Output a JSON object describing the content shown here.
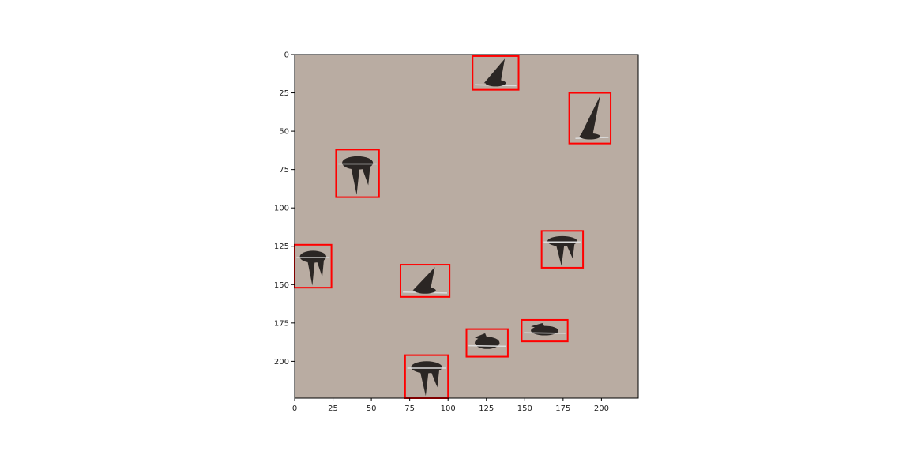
{
  "image": {
    "background_color": "#b9aca2",
    "subject": "birds in flight",
    "x_range": [
      0,
      224
    ],
    "y_range": [
      0,
      224
    ]
  },
  "axes": {
    "x_ticks": [
      0,
      25,
      50,
      75,
      100,
      125,
      150,
      175,
      200
    ],
    "y_ticks": [
      0,
      25,
      50,
      75,
      100,
      125,
      150,
      175,
      200
    ]
  },
  "box_color": "#ff0000",
  "detections": [
    {
      "x0": 116,
      "y0": 1,
      "x1": 146,
      "y1": 23,
      "pose": "glide"
    },
    {
      "x0": 179,
      "y0": 25,
      "x1": 206,
      "y1": 58,
      "pose": "up"
    },
    {
      "x0": 27,
      "y0": 62,
      "x1": 55,
      "y1": 93,
      "pose": "down"
    },
    {
      "x0": 161,
      "y0": 115,
      "x1": 188,
      "y1": 139,
      "pose": "down"
    },
    {
      "x0": 0,
      "y0": 124,
      "x1": 24,
      "y1": 152,
      "pose": "down"
    },
    {
      "x0": 69,
      "y0": 137,
      "x1": 101,
      "y1": 158,
      "pose": "glide"
    },
    {
      "x0": 148,
      "y0": 173,
      "x1": 178,
      "y1": 187,
      "pose": "flat"
    },
    {
      "x0": 112,
      "y0": 179,
      "x1": 139,
      "y1": 197,
      "pose": "flat"
    },
    {
      "x0": 72,
      "y0": 196,
      "x1": 100,
      "y1": 224,
      "pose": "down"
    }
  ]
}
